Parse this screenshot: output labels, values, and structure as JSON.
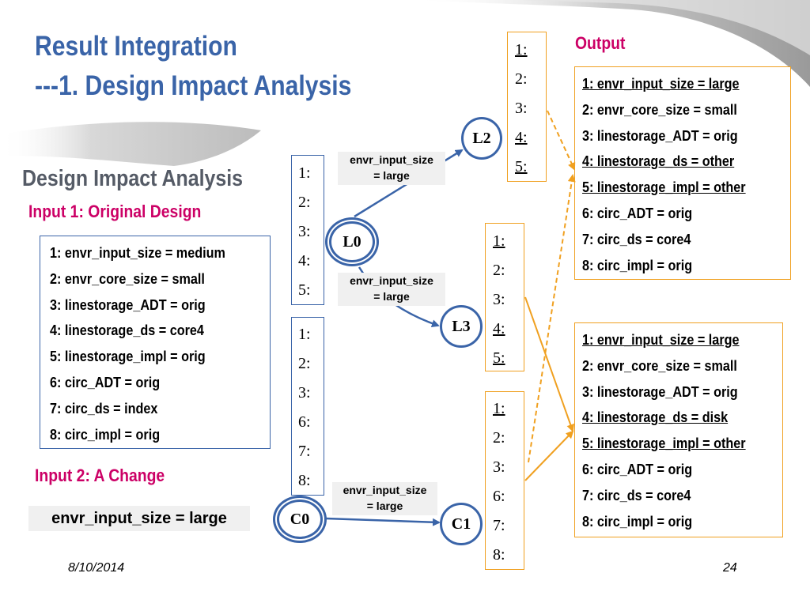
{
  "title_line1": "Result Integration",
  "title_line2": "---1. Design Impact Analysis",
  "subtitle": "Design Impact Analysis",
  "input1_label": "Input 1: Original Design",
  "input1_settings": [
    "1: envr_input_size = medium",
    "2: envr_core_size = small",
    "3: linestorage_ADT = orig",
    "4: linestorage_ds = core4",
    "5: linestorage_impl = orig",
    "6: circ_ADT = orig",
    "7: circ_ds = index",
    "8: circ_impl = orig"
  ],
  "input2_label": "Input 2: A Change",
  "change_text": "envr_input_size = large",
  "output_label": "Output",
  "output1_settings": [
    "1: envr_input_size = large",
    "2: envr_core_size = small",
    "3: linestorage_ADT = orig",
    "4: linestorage_ds = other",
    "5: linestorage_impl = other",
    "6: circ_ADT = orig",
    "7: circ_ds = core4",
    "8: circ_impl = orig"
  ],
  "output2_settings": [
    "1: envr_input_size = large",
    "2: envr_core_size = small",
    "3: linestorage_ADT = orig",
    "4: linestorage_ds = disk",
    "5: linestorage_impl = other",
    "6: circ_ADT = orig",
    "7: circ_ds = core4",
    "8: circ_impl = orig"
  ],
  "nodes": {
    "L0": "L0",
    "L2": "L2",
    "L3": "L3",
    "C0": "C0",
    "C1": "C1"
  },
  "l0_nums": [
    "1:",
    "2:",
    "3:",
    "4:",
    "5:"
  ],
  "c0_nums": [
    "1:",
    "2:",
    "3:",
    "6:",
    "7:",
    "8:"
  ],
  "l2_nums": [
    "1:",
    "2:",
    "3:",
    "4:",
    "5:"
  ],
  "l3_nums": [
    "1:",
    "2:",
    "3:",
    "4:",
    "5:"
  ],
  "c1_nums": [
    "1:",
    "2:",
    "3:",
    "6:",
    "7:",
    "8:"
  ],
  "edge_label_line1": "envr_input_size",
  "edge_label_line2": "= large",
  "footer_date": "8/10/2014",
  "footer_page": "24",
  "colors": {
    "title": "#3a64a8",
    "accent": "#cc0066",
    "node_border": "#3a64a8",
    "arrow_orange": "#f0a020"
  }
}
